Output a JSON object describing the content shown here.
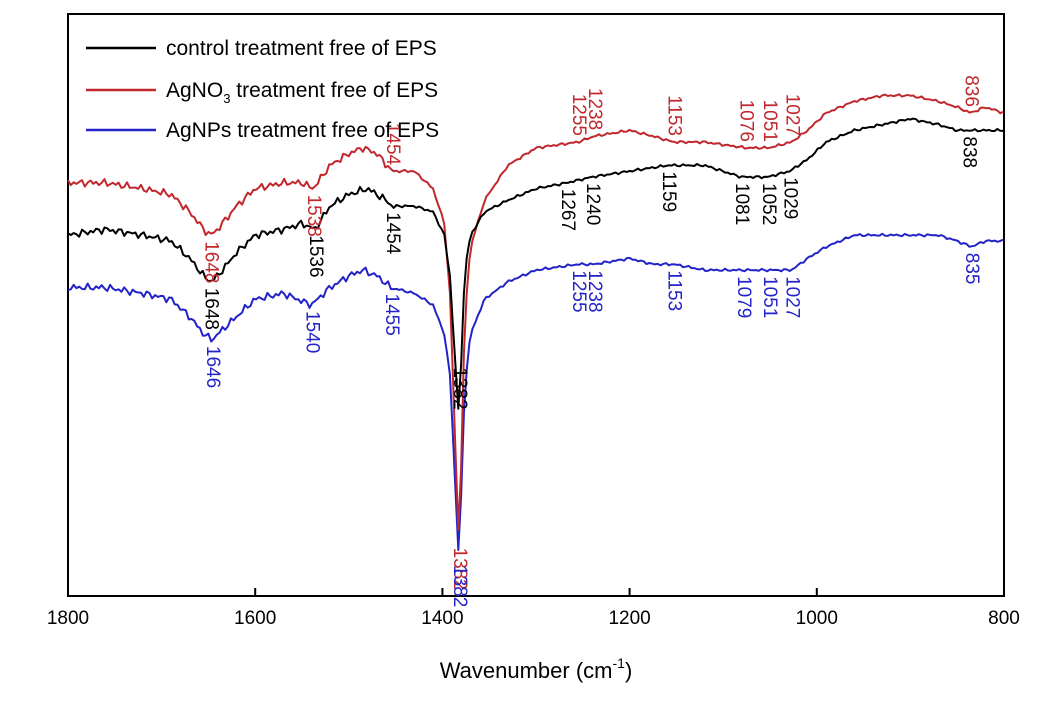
{
  "chart_data": {
    "type": "line",
    "xlabel": "Wavenumber (cm",
    "xlabel_sup": "-1",
    "xlabel_close": ")",
    "xlim": [
      1800,
      800
    ],
    "x_reversed": true,
    "x_ticks": [
      1800,
      1600,
      1400,
      1200,
      1000,
      800
    ],
    "y_ticks_shown": false,
    "ylim": [
      0,
      1
    ],
    "grid": false,
    "legend_position": "top-left",
    "series": [
      {
        "name": "control treatment free of EPS",
        "color": "#000000",
        "points": [
          [
            1800,
            0.62
          ],
          [
            1760,
            0.63
          ],
          [
            1720,
            0.62
          ],
          [
            1690,
            0.61
          ],
          [
            1670,
            0.58
          ],
          [
            1655,
            0.55
          ],
          [
            1648,
            0.54
          ],
          [
            1640,
            0.55
          ],
          [
            1620,
            0.59
          ],
          [
            1600,
            0.62
          ],
          [
            1570,
            0.63
          ],
          [
            1550,
            0.64
          ],
          [
            1536,
            0.63
          ],
          [
            1520,
            0.67
          ],
          [
            1500,
            0.69
          ],
          [
            1480,
            0.7
          ],
          [
            1460,
            0.68
          ],
          [
            1454,
            0.67
          ],
          [
            1430,
            0.67
          ],
          [
            1410,
            0.66
          ],
          [
            1398,
            0.62
          ],
          [
            1392,
            0.55
          ],
          [
            1387,
            0.42
          ],
          [
            1383,
            0.32
          ],
          [
            1382,
            0.31
          ],
          [
            1380,
            0.4
          ],
          [
            1376,
            0.56
          ],
          [
            1370,
            0.62
          ],
          [
            1355,
            0.66
          ],
          [
            1330,
            0.68
          ],
          [
            1300,
            0.7
          ],
          [
            1267,
            0.71
          ],
          [
            1240,
            0.72
          ],
          [
            1200,
            0.73
          ],
          [
            1159,
            0.74
          ],
          [
            1120,
            0.74
          ],
          [
            1081,
            0.72
          ],
          [
            1052,
            0.72
          ],
          [
            1029,
            0.73
          ],
          [
            1010,
            0.75
          ],
          [
            990,
            0.78
          ],
          [
            960,
            0.8
          ],
          [
            930,
            0.81
          ],
          [
            900,
            0.82
          ],
          [
            870,
            0.81
          ],
          [
            850,
            0.8
          ],
          [
            838,
            0.8
          ],
          [
            820,
            0.8
          ],
          [
            800,
            0.8
          ]
        ]
      },
      {
        "name": "AgNO3 treatment free of EPS",
        "name_main": "AgNO",
        "name_sub": "3",
        "name_rest": " treatment free of EPS",
        "color": "#c0282d",
        "points": [
          [
            1800,
            0.71
          ],
          [
            1760,
            0.71
          ],
          [
            1720,
            0.7
          ],
          [
            1690,
            0.69
          ],
          [
            1670,
            0.66
          ],
          [
            1655,
            0.63
          ],
          [
            1648,
            0.62
          ],
          [
            1640,
            0.63
          ],
          [
            1620,
            0.67
          ],
          [
            1600,
            0.7
          ],
          [
            1570,
            0.71
          ],
          [
            1550,
            0.71
          ],
          [
            1538,
            0.7
          ],
          [
            1520,
            0.74
          ],
          [
            1500,
            0.76
          ],
          [
            1485,
            0.77
          ],
          [
            1470,
            0.76
          ],
          [
            1454,
            0.73
          ],
          [
            1430,
            0.73
          ],
          [
            1410,
            0.7
          ],
          [
            1398,
            0.64
          ],
          [
            1392,
            0.52
          ],
          [
            1387,
            0.3
          ],
          [
            1384,
            0.14
          ],
          [
            1382,
            0.09
          ],
          [
            1380,
            0.22
          ],
          [
            1376,
            0.48
          ],
          [
            1370,
            0.6
          ],
          [
            1355,
            0.68
          ],
          [
            1330,
            0.74
          ],
          [
            1300,
            0.77
          ],
          [
            1255,
            0.78
          ],
          [
            1238,
            0.79
          ],
          [
            1200,
            0.8
          ],
          [
            1175,
            0.79
          ],
          [
            1153,
            0.78
          ],
          [
            1120,
            0.78
          ],
          [
            1076,
            0.77
          ],
          [
            1051,
            0.77
          ],
          [
            1027,
            0.78
          ],
          [
            1010,
            0.8
          ],
          [
            990,
            0.83
          ],
          [
            960,
            0.85
          ],
          [
            930,
            0.86
          ],
          [
            900,
            0.86
          ],
          [
            870,
            0.85
          ],
          [
            850,
            0.84
          ],
          [
            836,
            0.83
          ],
          [
            820,
            0.84
          ],
          [
            800,
            0.83
          ]
        ]
      },
      {
        "name": "AgNPs treatment free of EPS",
        "color": "#2323c8",
        "points": [
          [
            1800,
            0.53
          ],
          [
            1760,
            0.53
          ],
          [
            1720,
            0.52
          ],
          [
            1690,
            0.51
          ],
          [
            1670,
            0.48
          ],
          [
            1655,
            0.45
          ],
          [
            1646,
            0.44
          ],
          [
            1640,
            0.45
          ],
          [
            1620,
            0.48
          ],
          [
            1600,
            0.51
          ],
          [
            1570,
            0.52
          ],
          [
            1555,
            0.51
          ],
          [
            1540,
            0.5
          ],
          [
            1520,
            0.53
          ],
          [
            1500,
            0.55
          ],
          [
            1485,
            0.56
          ],
          [
            1470,
            0.55
          ],
          [
            1455,
            0.53
          ],
          [
            1430,
            0.52
          ],
          [
            1410,
            0.5
          ],
          [
            1398,
            0.45
          ],
          [
            1392,
            0.38
          ],
          [
            1387,
            0.22
          ],
          [
            1384,
            0.1
          ],
          [
            1382,
            0.06
          ],
          [
            1380,
            0.17
          ],
          [
            1376,
            0.36
          ],
          [
            1370,
            0.45
          ],
          [
            1355,
            0.51
          ],
          [
            1330,
            0.54
          ],
          [
            1300,
            0.56
          ],
          [
            1255,
            0.57
          ],
          [
            1238,
            0.57
          ],
          [
            1200,
            0.58
          ],
          [
            1175,
            0.57
          ],
          [
            1153,
            0.57
          ],
          [
            1120,
            0.56
          ],
          [
            1079,
            0.56
          ],
          [
            1051,
            0.56
          ],
          [
            1027,
            0.56
          ],
          [
            1010,
            0.58
          ],
          [
            990,
            0.6
          ],
          [
            960,
            0.62
          ],
          [
            930,
            0.62
          ],
          [
            900,
            0.62
          ],
          [
            870,
            0.62
          ],
          [
            850,
            0.61
          ],
          [
            835,
            0.6
          ],
          [
            820,
            0.61
          ],
          [
            800,
            0.61
          ]
        ]
      }
    ],
    "annotations": [
      {
        "text": "1648",
        "x": 1648,
        "series": 1,
        "side": "below"
      },
      {
        "text": "1538",
        "x": 1538,
        "series": 1,
        "side": "below"
      },
      {
        "text": "1454",
        "x": 1454,
        "series": 1,
        "side": "above"
      },
      {
        "text": "1255",
        "x": 1255,
        "series": 1,
        "side": "above"
      },
      {
        "text": "1238",
        "x": 1238,
        "series": 1,
        "side": "above"
      },
      {
        "text": "1153",
        "x": 1153,
        "series": 1,
        "side": "above"
      },
      {
        "text": "1076",
        "x": 1076,
        "series": 1,
        "side": "above"
      },
      {
        "text": "1051",
        "x": 1051,
        "series": 1,
        "side": "above"
      },
      {
        "text": "1027",
        "x": 1027,
        "series": 1,
        "side": "above"
      },
      {
        "text": "836",
        "x": 836,
        "series": 1,
        "side": "above"
      },
      {
        "text": "1382",
        "x": 1382,
        "series": 1,
        "side": "below-deep"
      },
      {
        "text": "1382",
        "x": 1382,
        "series": 0,
        "side": "above"
      },
      {
        "text": "1648",
        "x": 1648,
        "series": 0,
        "side": "below"
      },
      {
        "text": "1536",
        "x": 1536,
        "series": 0,
        "side": "below"
      },
      {
        "text": "1454",
        "x": 1454,
        "series": 0,
        "side": "below"
      },
      {
        "text": "1267",
        "x": 1267,
        "series": 0,
        "side": "below"
      },
      {
        "text": "1240",
        "x": 1240,
        "series": 0,
        "side": "below"
      },
      {
        "text": "1159",
        "x": 1159,
        "series": 0,
        "side": "below"
      },
      {
        "text": "1081",
        "x": 1081,
        "series": 0,
        "side": "below"
      },
      {
        "text": "1052",
        "x": 1052,
        "series": 0,
        "side": "below"
      },
      {
        "text": "1029",
        "x": 1029,
        "series": 0,
        "side": "below"
      },
      {
        "text": "838",
        "x": 838,
        "series": 0,
        "side": "below"
      },
      {
        "text": "1646",
        "x": 1646,
        "series": 2,
        "side": "below"
      },
      {
        "text": "1540",
        "x": 1540,
        "series": 2,
        "side": "below"
      },
      {
        "text": "1455",
        "x": 1455,
        "series": 2,
        "side": "below"
      },
      {
        "text": "1255",
        "x": 1255,
        "series": 2,
        "side": "below"
      },
      {
        "text": "1238",
        "x": 1238,
        "series": 2,
        "side": "below"
      },
      {
        "text": "1153",
        "x": 1153,
        "series": 2,
        "side": "below"
      },
      {
        "text": "1079",
        "x": 1079,
        "series": 2,
        "side": "below"
      },
      {
        "text": "1051",
        "x": 1051,
        "series": 2,
        "side": "below"
      },
      {
        "text": "1027",
        "x": 1027,
        "series": 2,
        "side": "below"
      },
      {
        "text": "835",
        "x": 835,
        "series": 2,
        "side": "below"
      },
      {
        "text": "1382",
        "x": 1382,
        "series": 2,
        "side": "below-deep"
      }
    ]
  }
}
